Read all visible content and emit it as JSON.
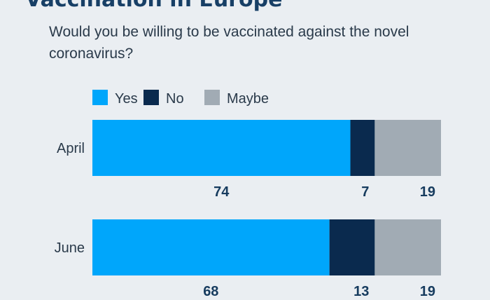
{
  "title": "Vaccination in Europe",
  "title_mark": "*",
  "subtitle": "Would you be willing to be vaccinated against the novel coronavirus?",
  "chart_data": {
    "type": "bar",
    "orientation": "horizontal",
    "stacked": true,
    "categories": [
      "April",
      "June"
    ],
    "series": [
      {
        "name": "Yes",
        "color": "#00a6fb",
        "values": [
          74,
          68
        ]
      },
      {
        "name": "No",
        "color": "#0a2a4e",
        "values": [
          7,
          13
        ]
      },
      {
        "name": "Maybe",
        "color": "#a1abb4",
        "values": [
          19,
          19
        ]
      }
    ],
    "xlim": [
      0,
      100
    ],
    "legend_position": "top-left",
    "grid": false
  }
}
